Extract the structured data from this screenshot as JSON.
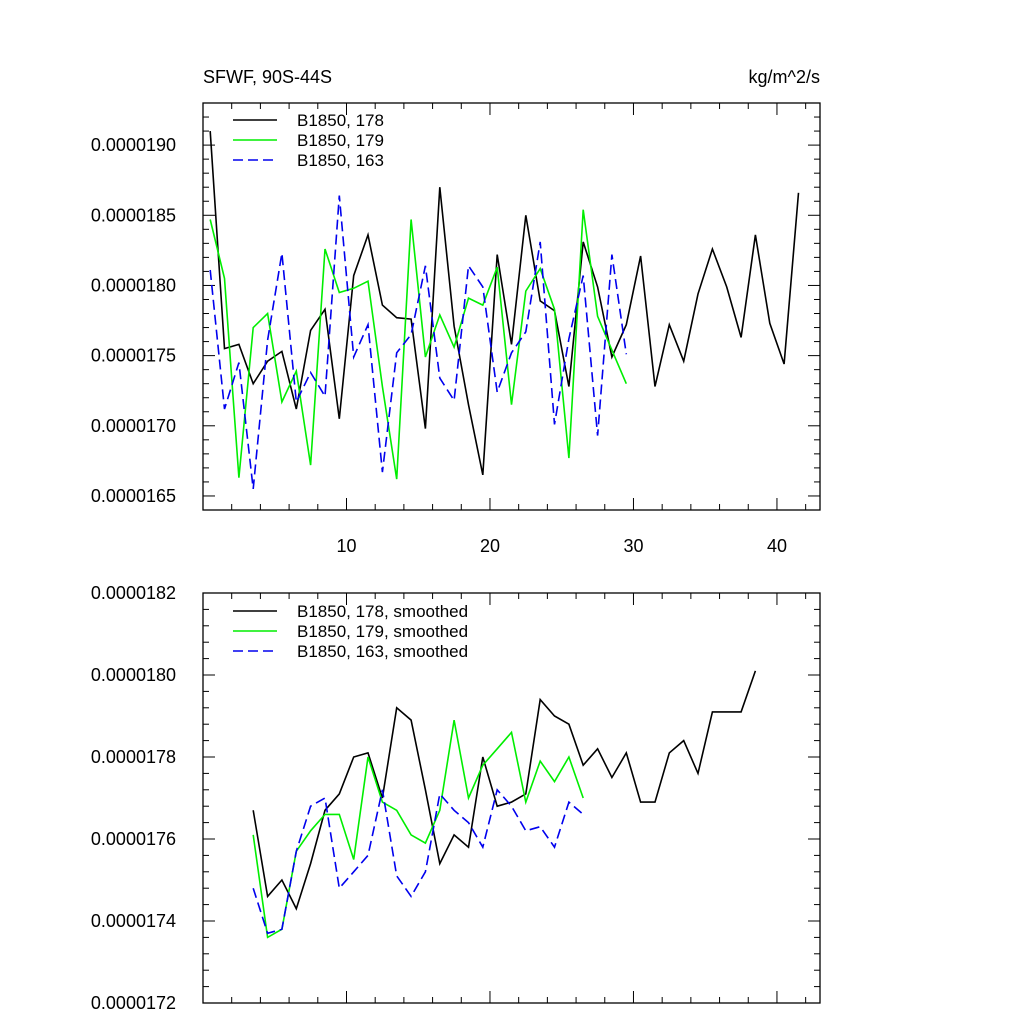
{
  "chart_data": [
    {
      "type": "line",
      "title": "SFWF, 90S-44S",
      "units": "kg/m^2/s",
      "xlim": [
        0,
        43
      ],
      "ylim": [
        1.64e-05,
        1.93e-05
      ],
      "xticks": [
        10,
        20,
        30,
        40
      ],
      "xtick_labels": [
        "10",
        "20",
        "30",
        "40"
      ],
      "yticks": [
        1.65e-05,
        1.7e-05,
        1.75e-05,
        1.8e-05,
        1.85e-05,
        1.9e-05
      ],
      "ytick_labels": [
        "0.0000165",
        "0.0000170",
        "0.0000175",
        "0.0000180",
        "0.0000185",
        "0.0000190"
      ],
      "legend": [
        "B1850, 178",
        "B1850, 179",
        "B1850, 163"
      ],
      "series": [
        {
          "name": "B1850, 178",
          "color": "#000000",
          "dash": "solid",
          "x_start": 0.5,
          "values": [
            1.91e-05,
            1.755e-05,
            1.758e-05,
            1.73e-05,
            1.746e-05,
            1.753e-05,
            1.712e-05,
            1.768e-05,
            1.783e-05,
            1.705e-05,
            1.807e-05,
            1.836e-05,
            1.786e-05,
            1.777e-05,
            1.776e-05,
            1.698e-05,
            1.87e-05,
            1.771e-05,
            1.715e-05,
            1.665e-05,
            1.822e-05,
            1.758e-05,
            1.85e-05,
            1.789e-05,
            1.782e-05,
            1.728e-05,
            1.831e-05,
            1.799e-05,
            1.749e-05,
            1.772e-05,
            1.821e-05,
            1.728e-05,
            1.772e-05,
            1.746e-05,
            1.794e-05,
            1.826e-05,
            1.799e-05,
            1.763e-05,
            1.836e-05,
            1.773e-05,
            1.744e-05,
            1.866e-05
          ]
        },
        {
          "name": "B1850, 179",
          "color": "#00ee00",
          "dash": "solid",
          "x_start": 0.5,
          "values": [
            1.847e-05,
            1.805e-05,
            1.663e-05,
            1.77e-05,
            1.78e-05,
            1.717e-05,
            1.739e-05,
            1.672e-05,
            1.826e-05,
            1.795e-05,
            1.798e-05,
            1.803e-05,
            1.728e-05,
            1.662e-05,
            1.847e-05,
            1.749e-05,
            1.779e-05,
            1.756e-05,
            1.791e-05,
            1.786e-05,
            1.813e-05,
            1.715e-05,
            1.796e-05,
            1.812e-05,
            1.783e-05,
            1.677e-05,
            1.854e-05,
            1.778e-05,
            1.754e-05,
            1.73e-05
          ]
        },
        {
          "name": "B1850, 163",
          "color": "#0000ee",
          "dash": "dashed",
          "x_start": 0.5,
          "values": [
            1.811e-05,
            1.712e-05,
            1.745e-05,
            1.655e-05,
            1.761e-05,
            1.823e-05,
            1.717e-05,
            1.738e-05,
            1.721e-05,
            1.864e-05,
            1.749e-05,
            1.772e-05,
            1.667e-05,
            1.752e-05,
            1.765e-05,
            1.814e-05,
            1.734e-05,
            1.718e-05,
            1.814e-05,
            1.799e-05,
            1.724e-05,
            1.752e-05,
            1.767e-05,
            1.831e-05,
            1.701e-05,
            1.762e-05,
            1.807e-05,
            1.693e-05,
            1.822e-05,
            1.751e-05
          ]
        }
      ]
    },
    {
      "type": "line",
      "title": "",
      "xlim": [
        0,
        43
      ],
      "ylim": [
        1.72e-05,
        1.82e-05
      ],
      "xticks": [
        10,
        20,
        30,
        40
      ],
      "xtick_labels": [],
      "yticks": [
        1.72e-05,
        1.74e-05,
        1.76e-05,
        1.78e-05,
        1.8e-05,
        1.82e-05
      ],
      "ytick_labels": [
        "0.0000172",
        "0.0000174",
        "0.0000176",
        "0.0000178",
        "0.0000180",
        "0.0000182"
      ],
      "legend": [
        "B1850, 178, smoothed",
        "B1850, 179, smoothed",
        "B1850, 163, smoothed"
      ],
      "series": [
        {
          "name": "B1850, 178, smoothed",
          "color": "#000000",
          "dash": "solid",
          "x_start": 3.5,
          "values": [
            1.767e-05,
            1.746e-05,
            1.75e-05,
            1.743e-05,
            1.754e-05,
            1.767e-05,
            1.771e-05,
            1.78e-05,
            1.781e-05,
            1.77e-05,
            1.792e-05,
            1.789e-05,
            1.772e-05,
            1.754e-05,
            1.761e-05,
            1.758e-05,
            1.78e-05,
            1.768e-05,
            1.769e-05,
            1.771e-05,
            1.794e-05,
            1.79e-05,
            1.788e-05,
            1.778e-05,
            1.782e-05,
            1.775e-05,
            1.781e-05,
            1.769e-05,
            1.769e-05,
            1.781e-05,
            1.784e-05,
            1.776e-05,
            1.791e-05,
            1.791e-05,
            1.791e-05,
            1.801e-05
          ]
        },
        {
          "name": "B1850, 179, smoothed",
          "color": "#00ee00",
          "dash": "solid",
          "x_start": 3.5,
          "values": [
            1.761e-05,
            1.736e-05,
            1.738e-05,
            1.757e-05,
            1.762e-05,
            1.766e-05,
            1.766e-05,
            1.755e-05,
            1.78e-05,
            1.769e-05,
            1.767e-05,
            1.761e-05,
            1.759e-05,
            1.767e-05,
            1.789e-05,
            1.77e-05,
            1.778e-05,
            1.782e-05,
            1.786e-05,
            1.769e-05,
            1.779e-05,
            1.774e-05,
            1.78e-05,
            1.77e-05
          ]
        },
        {
          "name": "B1850, 163, smoothed",
          "color": "#0000ee",
          "dash": "dashed",
          "x_start": 3.5,
          "values": [
            1.748e-05,
            1.737e-05,
            1.738e-05,
            1.757e-05,
            1.768e-05,
            1.77e-05,
            1.748e-05,
            1.752e-05,
            1.756e-05,
            1.772e-05,
            1.751e-05,
            1.746e-05,
            1.752e-05,
            1.771e-05,
            1.767e-05,
            1.764e-05,
            1.758e-05,
            1.772e-05,
            1.768e-05,
            1.762e-05,
            1.763e-05,
            1.758e-05,
            1.769e-05,
            1.766e-05
          ]
        }
      ]
    }
  ]
}
